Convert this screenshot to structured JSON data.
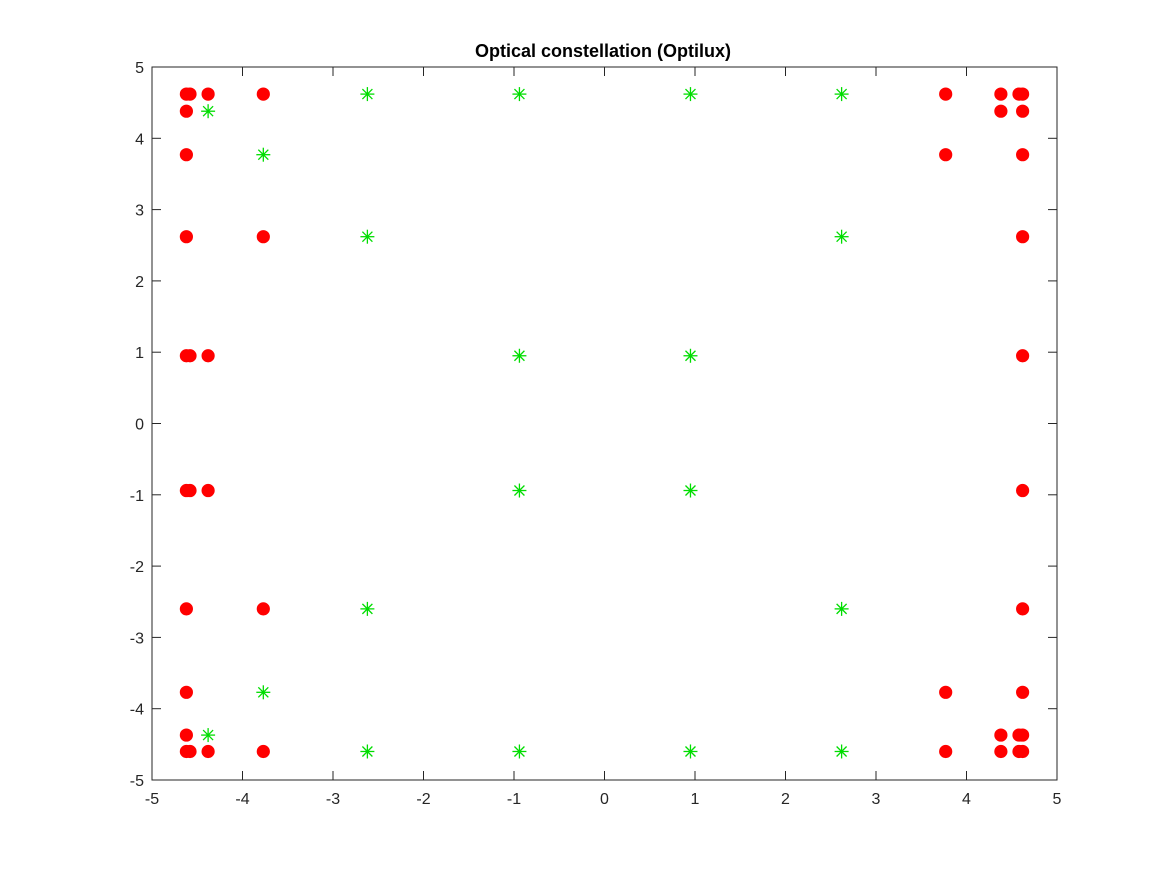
{
  "chart_data": {
    "type": "scatter",
    "title": "Optical constellation (Optilux)",
    "xlabel": "",
    "ylabel": "",
    "xlim": [
      -5,
      5
    ],
    "ylim": [
      -5,
      5
    ],
    "xticks": [
      -5,
      -4,
      -3,
      -2,
      -1,
      0,
      1,
      2,
      3,
      4,
      5
    ],
    "yticks": [
      -5,
      -4,
      -3,
      -2,
      -1,
      0,
      1,
      2,
      3,
      4,
      5
    ],
    "grid": false,
    "series": [
      {
        "marker": "filled-circle",
        "color": "#ff0000",
        "points": [
          [
            -4.62,
            4.62
          ],
          [
            -4.58,
            4.62
          ],
          [
            -4.38,
            4.62
          ],
          [
            -3.77,
            4.62
          ],
          [
            -4.62,
            4.38
          ],
          [
            -4.62,
            3.77
          ],
          [
            -4.62,
            2.62
          ],
          [
            -3.77,
            2.62
          ],
          [
            -4.62,
            0.95
          ],
          [
            -4.58,
            0.95
          ],
          [
            -4.38,
            0.95
          ],
          [
            -4.62,
            -0.94
          ],
          [
            -4.58,
            -0.94
          ],
          [
            -4.38,
            -0.94
          ],
          [
            -4.62,
            -2.6
          ],
          [
            -3.77,
            -2.6
          ],
          [
            -4.62,
            -3.77
          ],
          [
            -4.62,
            -4.37
          ],
          [
            -4.62,
            -4.6
          ],
          [
            -4.58,
            -4.6
          ],
          [
            -4.38,
            -4.6
          ],
          [
            -3.77,
            -4.6
          ],
          [
            3.77,
            4.62
          ],
          [
            4.38,
            4.62
          ],
          [
            4.58,
            4.62
          ],
          [
            4.62,
            4.62
          ],
          [
            4.38,
            4.38
          ],
          [
            4.62,
            4.38
          ],
          [
            3.77,
            3.77
          ],
          [
            4.62,
            3.77
          ],
          [
            4.62,
            2.62
          ],
          [
            4.62,
            0.95
          ],
          [
            4.62,
            -0.94
          ],
          [
            4.62,
            -2.6
          ],
          [
            3.77,
            -3.77
          ],
          [
            4.62,
            -3.77
          ],
          [
            4.38,
            -4.37
          ],
          [
            4.58,
            -4.37
          ],
          [
            4.62,
            -4.37
          ],
          [
            3.77,
            -4.6
          ],
          [
            4.38,
            -4.6
          ],
          [
            4.58,
            -4.6
          ],
          [
            4.62,
            -4.6
          ]
        ]
      },
      {
        "marker": "asterisk",
        "color": "#00dd00",
        "points": [
          [
            -2.62,
            4.62
          ],
          [
            -0.94,
            4.62
          ],
          [
            0.95,
            4.62
          ],
          [
            2.62,
            4.62
          ],
          [
            -4.38,
            4.38
          ],
          [
            -3.77,
            3.77
          ],
          [
            -2.62,
            2.62
          ],
          [
            2.62,
            2.62
          ],
          [
            -0.94,
            0.95
          ],
          [
            0.95,
            0.95
          ],
          [
            -0.94,
            -0.94
          ],
          [
            0.95,
            -0.94
          ],
          [
            -2.62,
            -2.6
          ],
          [
            2.62,
            -2.6
          ],
          [
            -3.77,
            -3.77
          ],
          [
            -4.38,
            -4.37
          ],
          [
            -2.62,
            -4.6
          ],
          [
            -0.94,
            -4.6
          ],
          [
            0.95,
            -4.6
          ],
          [
            2.62,
            -4.6
          ]
        ]
      }
    ]
  }
}
